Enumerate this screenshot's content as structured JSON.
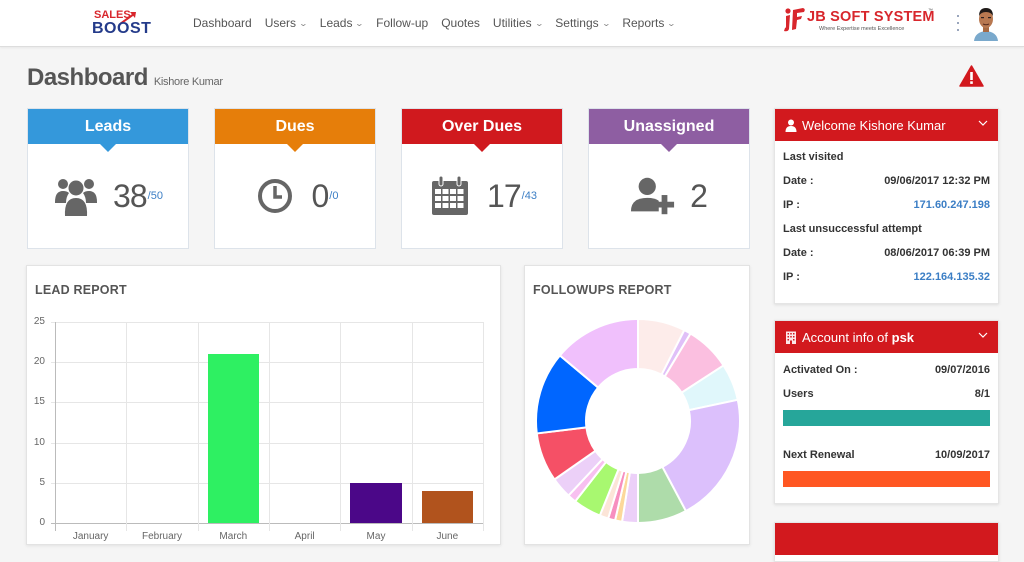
{
  "nav": {
    "logo_top": "SALES",
    "logo_bottom": "BOOST",
    "items": [
      {
        "label": "Dashboard",
        "has_dropdown": false
      },
      {
        "label": "Users",
        "has_dropdown": true
      },
      {
        "label": "Leads",
        "has_dropdown": true
      },
      {
        "label": "Follow-up",
        "has_dropdown": false
      },
      {
        "label": "Quotes",
        "has_dropdown": false
      },
      {
        "label": "Utilities",
        "has_dropdown": true
      },
      {
        "label": "Settings",
        "has_dropdown": true
      },
      {
        "label": "Reports",
        "has_dropdown": true
      }
    ],
    "chevron": "⌄",
    "brand_name": "JB SOFT SYSTEM",
    "brand_tm": "™",
    "brand_tagline": "Where Expertise meets Excellence"
  },
  "page": {
    "title": "Dashboard",
    "subtitle": "Kishore Kumar",
    "alert_icon": "warning-triangle-icon"
  },
  "stats": [
    {
      "label": "Leads",
      "value": "38",
      "total": "/50",
      "color": "#3498db",
      "icon": "users-group-icon"
    },
    {
      "label": "Dues",
      "value": "0",
      "total": "/0",
      "color": "#e67e0a",
      "icon": "clock-icon"
    },
    {
      "label": "Over Dues",
      "value": "17",
      "total": "/43",
      "color": "#d0191e",
      "icon": "calendar-icon"
    },
    {
      "label": "Unassigned",
      "value": "2",
      "total": "",
      "color": "#8e5ea2",
      "icon": "user-add-icon"
    }
  ],
  "lead_report": {
    "title": "LEAD REPORT"
  },
  "followups_report": {
    "title": "FOLLOWUPS REPORT"
  },
  "welcome_panel": {
    "title": "Welcome Kishore Kumar",
    "last_visited_label": "Last visited",
    "last_visited_date_label": "Date :",
    "last_visited_date": "09/06/2017 12:32 PM",
    "last_visited_ip_label": "IP :",
    "last_visited_ip": "171.60.247.198",
    "unsuccessful_label": "Last unsuccessful attempt",
    "unsuccessful_date_label": "Date :",
    "unsuccessful_date": "08/06/2017 06:39 PM",
    "unsuccessful_ip_label": "IP :",
    "unsuccessful_ip": "122.164.135.32"
  },
  "account_panel": {
    "title_prefix": "Account info of ",
    "title_account": "psk",
    "activated_label": "Activated On :",
    "activated_value": "09/07/2016",
    "users_label": "Users",
    "users_value": "8/1",
    "users_bar_color": "#26a69a",
    "renewal_label": "Next Renewal",
    "renewal_value": "10/09/2017",
    "renewal_bar_color": "#ff5722"
  },
  "colors": {
    "header_red": "#d2191e",
    "link_blue": "#3b7ec5"
  },
  "chart_data": [
    {
      "type": "bar",
      "title": "LEAD REPORT",
      "categories": [
        "January",
        "February",
        "March",
        "April",
        "May",
        "June"
      ],
      "values": [
        0,
        0,
        21,
        0,
        5,
        4
      ],
      "colors": [
        "#cccccc",
        "#cccccc",
        "#2ef062",
        "#cccccc",
        "#4b0788",
        "#b1531d"
      ],
      "xlabel": "",
      "ylabel": "",
      "ylim": [
        0,
        25
      ],
      "yticks": [
        0,
        5,
        10,
        15,
        20,
        25
      ],
      "grid": true,
      "legend": "none"
    },
    {
      "type": "pie",
      "subtype": "doughnut",
      "title": "FOLLOWUPS REPORT",
      "values": [
        27,
        4,
        26,
        21,
        74,
        28,
        9,
        4,
        4,
        5,
        16,
        5,
        12,
        28,
        47,
        50
      ],
      "colors": [
        "#fdecea",
        "#e0c0f8",
        "#fbbfe0",
        "#e0f7fb",
        "#dcc0fc",
        "#aedcaa",
        "#ecd0f8",
        "#fcd89a",
        "#f78fbf",
        "#fce5d8",
        "#a8f870",
        "#f8c0f0",
        "#ecd0f8",
        "#f55066",
        "#0066ff",
        "#f0c0fc"
      ],
      "legend": "none"
    }
  ]
}
